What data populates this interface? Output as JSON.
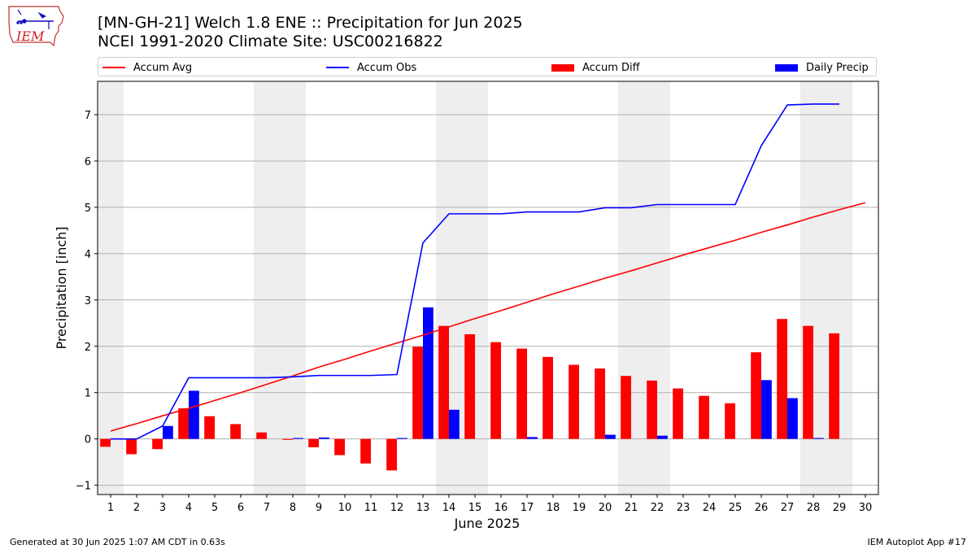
{
  "header": {
    "title_line1": "[MN-GH-21] Welch 1.8 ENE :: Precipitation for Jun 2025",
    "title_line2": "NCEI 1991-2020 Climate Site: USC00216822",
    "logo_text": "IEM"
  },
  "footer": {
    "generated": "Generated at 30 Jun 2025 1:07 AM CDT in 0.63s",
    "app": "IEM Autoplot App #17"
  },
  "legend": {
    "items": [
      {
        "label": "Accum Avg",
        "color": "#ff0000",
        "kind": "line"
      },
      {
        "label": "Accum Obs",
        "color": "#0000ff",
        "kind": "line"
      },
      {
        "label": "Accum Diff",
        "color": "#ff0000",
        "kind": "box"
      },
      {
        "label": "Daily Precip",
        "color": "#0000ff",
        "kind": "box"
      }
    ]
  },
  "chart_data": {
    "type": "bar",
    "xlabel": "June 2025",
    "ylabel": "Precipitation [inch]",
    "xlim": [
      0.5,
      30.5
    ],
    "ylim": [
      -1.2,
      7.72
    ],
    "yticks": [
      -1,
      0,
      1,
      2,
      3,
      4,
      5,
      6,
      7
    ],
    "xticks": [
      1,
      2,
      3,
      4,
      5,
      6,
      7,
      8,
      9,
      10,
      11,
      12,
      13,
      14,
      15,
      16,
      17,
      18,
      19,
      20,
      21,
      22,
      23,
      24,
      25,
      26,
      27,
      28,
      29,
      30
    ],
    "grid": "horizontal",
    "weekend_shading": [
      [
        0.5,
        1.5
      ],
      [
        6.5,
        8.5
      ],
      [
        13.5,
        15.5
      ],
      [
        20.5,
        22.5
      ],
      [
        27.5,
        29.5
      ]
    ],
    "series": [
      {
        "name": "Accum Avg",
        "type": "line",
        "color": "#ff0000",
        "x": [
          1,
          2,
          3,
          4,
          5,
          6,
          7,
          8,
          9,
          10,
          11,
          12,
          13,
          14,
          15,
          16,
          17,
          18,
          19,
          20,
          21,
          22,
          23,
          24,
          25,
          26,
          27,
          28,
          29,
          30
        ],
        "values": [
          0.17,
          0.33,
          0.5,
          0.66,
          0.83,
          1.0,
          1.18,
          1.36,
          1.55,
          1.72,
          1.9,
          2.07,
          2.24,
          2.42,
          2.6,
          2.77,
          2.95,
          3.13,
          3.3,
          3.47,
          3.63,
          3.8,
          3.97,
          4.13,
          4.29,
          4.46,
          4.62,
          4.79,
          4.95,
          5.1
        ]
      },
      {
        "name": "Accum Obs",
        "type": "line",
        "color": "#0000ff",
        "x": [
          1,
          2,
          3,
          4,
          5,
          6,
          7,
          8,
          9,
          10,
          11,
          12,
          13,
          14,
          15,
          16,
          17,
          18,
          19,
          20,
          21,
          22,
          23,
          24,
          25,
          26,
          27,
          28,
          29
        ],
        "values": [
          0.0,
          0.0,
          0.28,
          1.32,
          1.32,
          1.32,
          1.32,
          1.34,
          1.37,
          1.37,
          1.37,
          1.39,
          4.23,
          4.86,
          4.86,
          4.86,
          4.9,
          4.9,
          4.9,
          4.99,
          4.99,
          5.06,
          5.06,
          5.06,
          5.06,
          6.33,
          7.21,
          7.23,
          7.23
        ]
      },
      {
        "name": "Accum Diff",
        "type": "bar",
        "color": "#ff0000",
        "x": [
          1,
          2,
          3,
          4,
          5,
          6,
          7,
          8,
          9,
          10,
          11,
          12,
          13,
          14,
          15,
          16,
          17,
          18,
          19,
          20,
          21,
          22,
          23,
          24,
          25,
          26,
          27,
          28,
          29
        ],
        "values": [
          -0.17,
          -0.33,
          -0.22,
          0.66,
          0.49,
          0.32,
          0.14,
          -0.02,
          -0.18,
          -0.35,
          -0.53,
          -0.68,
          1.99,
          2.44,
          2.26,
          2.09,
          1.95,
          1.77,
          1.6,
          1.52,
          1.36,
          1.26,
          1.09,
          0.93,
          0.77,
          1.87,
          2.59,
          2.44,
          2.28
        ]
      },
      {
        "name": "Daily Precip",
        "type": "bar",
        "color": "#0000ff",
        "x": [
          1,
          2,
          3,
          4,
          5,
          6,
          7,
          8,
          9,
          10,
          11,
          12,
          13,
          14,
          15,
          16,
          17,
          18,
          19,
          20,
          21,
          22,
          23,
          24,
          25,
          26,
          27,
          28,
          29
        ],
        "values": [
          0,
          0,
          0.28,
          1.04,
          0,
          0,
          0,
          0.02,
          0.03,
          0,
          0,
          0.02,
          2.84,
          0.63,
          0,
          0,
          0.04,
          0,
          0,
          0.09,
          0,
          0.07,
          0,
          0,
          0,
          1.27,
          0.88,
          0.02,
          0
        ]
      }
    ]
  }
}
